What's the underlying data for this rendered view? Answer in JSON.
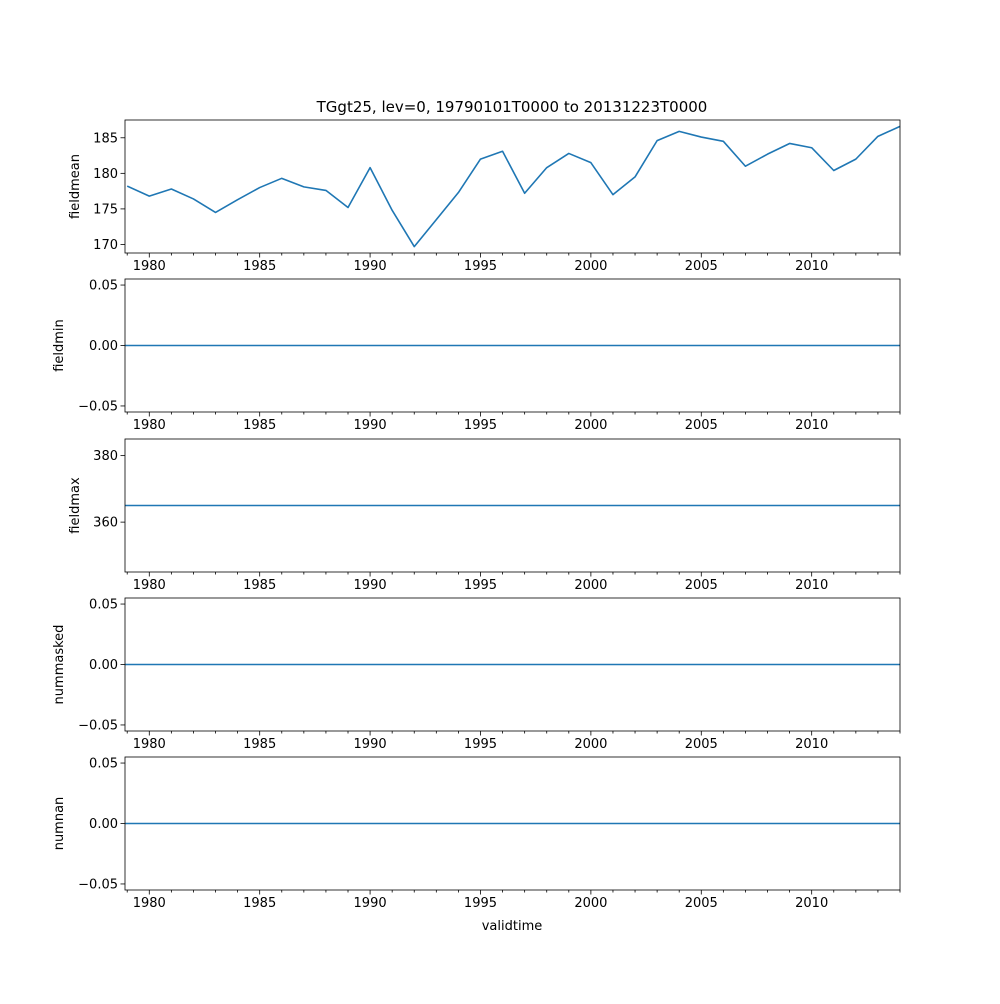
{
  "title": "TGgt25, lev=0, 19790101T0000 to 20131223T0000",
  "xlabel": "validtime",
  "colors": {
    "line": "#1f77b4",
    "axes": "#000000",
    "background": "#ffffff"
  },
  "chart_data": [
    {
      "type": "line",
      "ylabel": "fieldmean",
      "xlim": [
        1978.9,
        2014.0
      ],
      "ylim": [
        168.8,
        187.5
      ],
      "xticks": [
        "1980",
        "1985",
        "1990",
        "1995",
        "2000",
        "2005",
        "2010"
      ],
      "xtick_values": [
        1980,
        1985,
        1990,
        1995,
        2000,
        2005,
        2010
      ],
      "yticks": [
        "170",
        "175",
        "180",
        "185"
      ],
      "ytick_values": [
        170,
        175,
        180,
        185
      ],
      "series": [
        {
          "x": [
            1979,
            1980,
            1981,
            1982,
            1983,
            1984,
            1985,
            1986,
            1987,
            1988,
            1989,
            1990,
            1991,
            1992,
            1993,
            1994,
            1995,
            1996,
            1997,
            1998,
            1999,
            2000,
            2001,
            2002,
            2003,
            2004,
            2005,
            2006,
            2007,
            2008,
            2009,
            2010,
            2011,
            2012,
            2013,
            2014
          ],
          "y": [
            178.2,
            176.8,
            177.8,
            176.4,
            174.5,
            176.3,
            178.0,
            179.3,
            178.1,
            177.6,
            175.2,
            180.8,
            174.8,
            169.7,
            173.5,
            177.3,
            182.0,
            183.1,
            177.2,
            180.8,
            182.8,
            181.5,
            177.0,
            179.5,
            184.6,
            185.9,
            185.1,
            184.5,
            181.0,
            182.7,
            184.2,
            183.6,
            180.4,
            182.0,
            185.2,
            186.6
          ]
        }
      ]
    },
    {
      "type": "line",
      "ylabel": "fieldmin",
      "xlim": [
        1978.9,
        2014.0
      ],
      "ylim": [
        -0.055,
        0.055
      ],
      "xticks": [
        "1980",
        "1985",
        "1990",
        "1995",
        "2000",
        "2005",
        "2010"
      ],
      "xtick_values": [
        1980,
        1985,
        1990,
        1995,
        2000,
        2005,
        2010
      ],
      "yticks": [
        "−0.05",
        "0.00",
        "0.05"
      ],
      "ytick_values": [
        -0.05,
        0,
        0.05
      ],
      "series": [
        {
          "x": [
            1978.9,
            2014.0
          ],
          "y": [
            0,
            0
          ]
        }
      ]
    },
    {
      "type": "line",
      "ylabel": "fieldmax",
      "xlim": [
        1978.9,
        2014.0
      ],
      "ylim": [
        345,
        385
      ],
      "xticks": [
        "1980",
        "1985",
        "1990",
        "1995",
        "2000",
        "2005",
        "2010"
      ],
      "xtick_values": [
        1980,
        1985,
        1990,
        1995,
        2000,
        2005,
        2010
      ],
      "yticks": [
        "360",
        "380"
      ],
      "ytick_values": [
        360,
        380
      ],
      "series": [
        {
          "x": [
            1978.9,
            2014.0
          ],
          "y": [
            365,
            365
          ]
        }
      ]
    },
    {
      "type": "line",
      "ylabel": "nummasked",
      "xlim": [
        1978.9,
        2014.0
      ],
      "ylim": [
        -0.055,
        0.055
      ],
      "xticks": [
        "1980",
        "1985",
        "1990",
        "1995",
        "2000",
        "2005",
        "2010"
      ],
      "xtick_values": [
        1980,
        1985,
        1990,
        1995,
        2000,
        2005,
        2010
      ],
      "yticks": [
        "−0.05",
        "0.00",
        "0.05"
      ],
      "ytick_values": [
        -0.05,
        0,
        0.05
      ],
      "series": [
        {
          "x": [
            1978.9,
            2014.0
          ],
          "y": [
            0,
            0
          ]
        }
      ]
    },
    {
      "type": "line",
      "ylabel": "numnan",
      "xlim": [
        1978.9,
        2014.0
      ],
      "ylim": [
        -0.055,
        0.055
      ],
      "xticks": [
        "1980",
        "1985",
        "1990",
        "1995",
        "2000",
        "2005",
        "2010"
      ],
      "xtick_values": [
        1980,
        1985,
        1990,
        1995,
        2000,
        2005,
        2010
      ],
      "yticks": [
        "−0.05",
        "0.00",
        "0.05"
      ],
      "ytick_values": [
        -0.05,
        0,
        0.05
      ],
      "series": [
        {
          "x": [
            1978.9,
            2014.0
          ],
          "y": [
            0,
            0
          ]
        }
      ]
    }
  ]
}
